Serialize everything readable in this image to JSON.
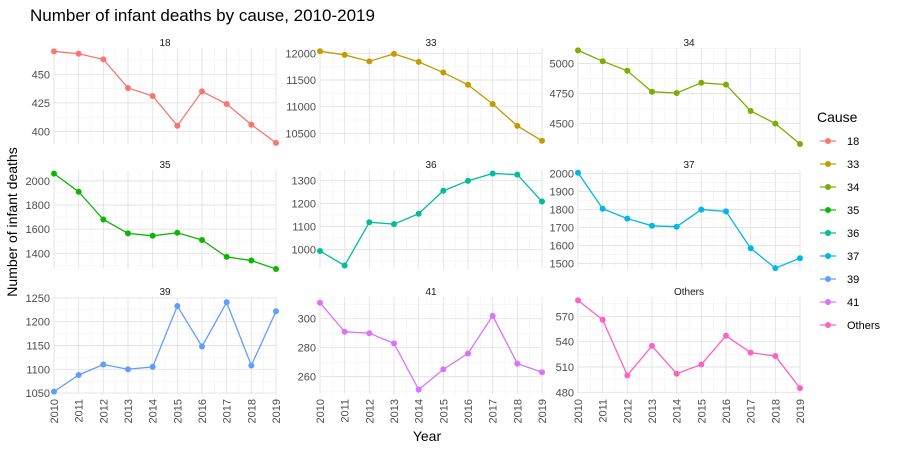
{
  "chart_data": {
    "type": "line",
    "title": "Number of infant deaths by cause, 2010-2019",
    "xlabel": "Year",
    "ylabel": "Number of infant deaths",
    "x": [
      2010,
      2011,
      2012,
      2013,
      2014,
      2015,
      2016,
      2017,
      2018,
      2019
    ],
    "grid": true,
    "legend": {
      "title": "Cause",
      "placement": "right",
      "entries": [
        "18",
        "33",
        "34",
        "35",
        "36",
        "37",
        "39",
        "41",
        "Others"
      ]
    },
    "panels": [
      {
        "name": "18",
        "color": "#F8766D",
        "ylim": [
          389,
          473
        ],
        "ticks": [
          400,
          425,
          450
        ],
        "values": [
          470,
          468,
          463,
          438,
          431,
          405,
          435,
          424,
          406,
          390
        ]
      },
      {
        "name": "33",
        "color": "#C49A00",
        "ylim": [
          10300,
          12100
        ],
        "ticks": [
          10500,
          11000,
          11500,
          12000
        ],
        "values": [
          12040,
          11970,
          11850,
          11990,
          11840,
          11640,
          11410,
          11050,
          10640,
          10360
        ]
      },
      {
        "name": "34",
        "color": "#7CAE00",
        "ylim": [
          4330,
          5130
        ],
        "ticks": [
          4500,
          4750,
          5000
        ],
        "values": [
          5110,
          5020,
          4940,
          4765,
          4755,
          4840,
          4825,
          4605,
          4500,
          4330
        ]
      },
      {
        "name": "35",
        "color": "#0CB702",
        "ylim": [
          1270,
          2090
        ],
        "ticks": [
          1400,
          1600,
          1800,
          2000
        ],
        "values": [
          2060,
          1910,
          1680,
          1565,
          1545,
          1570,
          1510,
          1370,
          1340,
          1270
        ]
      },
      {
        "name": "36",
        "color": "#00BE9A",
        "ylim": [
          915,
          1345
        ],
        "ticks": [
          1000,
          1100,
          1200,
          1300
        ],
        "values": [
          993,
          930,
          1118,
          1110,
          1155,
          1255,
          1298,
          1330,
          1325,
          1208
        ]
      },
      {
        "name": "37",
        "color": "#00B8E7",
        "ylim": [
          1470,
          2020
        ],
        "ticks": [
          1500,
          1600,
          1700,
          1800,
          1900,
          2000
        ],
        "values": [
          2005,
          1805,
          1750,
          1710,
          1705,
          1800,
          1790,
          1585,
          1475,
          1530
        ]
      },
      {
        "name": "39",
        "color": "#619CFF",
        "ylim": [
          1048,
          1252
        ],
        "ticks": [
          1050,
          1100,
          1150,
          1200,
          1250
        ],
        "values": [
          1053,
          1088,
          1110,
          1100,
          1105,
          1233,
          1148,
          1241,
          1108,
          1222
        ]
      },
      {
        "name": "41",
        "color": "#DB72FB",
        "ylim": [
          248,
          315
        ],
        "ticks": [
          260,
          280,
          300
        ],
        "values": [
          311,
          291,
          290,
          283,
          251,
          265,
          276,
          302,
          269,
          263
        ]
      },
      {
        "name": "Others",
        "color": "#FF61C3",
        "ylim": [
          478,
          593
        ],
        "ticks": [
          480,
          510,
          540,
          570
        ],
        "values": [
          589,
          566,
          500,
          535,
          502,
          513,
          547,
          527,
          523,
          485
        ]
      }
    ]
  }
}
